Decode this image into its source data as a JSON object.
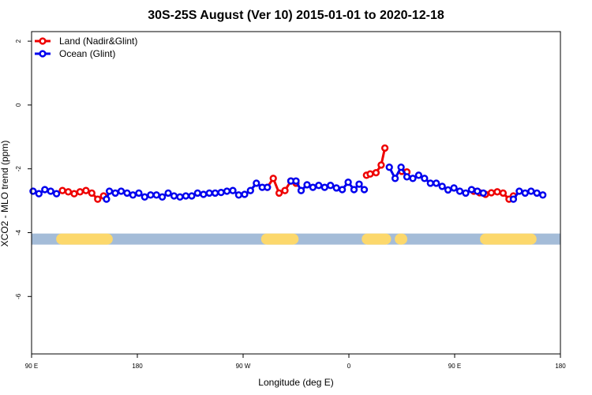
{
  "chart_data": {
    "type": "line",
    "title": "30S-25S August (Ver 10)   2015-01-01 to 2020-12-18",
    "xlabel": "Longitude (deg E)",
    "ylabel": "XCO2 - MLO trend (ppm)",
    "xlim": [
      90,
      450
    ],
    "ylim": [
      -7.8,
      2.3
    ],
    "x_ticks": [
      {
        "value": 90,
        "label": "90 E"
      },
      {
        "value": 162,
        "label": "180"
      },
      {
        "value": 234,
        "label": "90 W"
      },
      {
        "value": 306,
        "label": "0"
      },
      {
        "value": 378,
        "label": "90 E"
      },
      {
        "value": 450,
        "label": "180"
      }
    ],
    "y_ticks": [
      {
        "value": 2,
        "label": "2"
      },
      {
        "value": 0,
        "label": "0"
      },
      {
        "value": -2,
        "label": "-2"
      },
      {
        "value": -4,
        "label": "-4"
      },
      {
        "value": -6,
        "label": "-6"
      }
    ],
    "legend": {
      "position": "top-left"
    },
    "series": [
      {
        "name": "Land (Nadir&Glint)",
        "color": "#ee0000",
        "segments": [
          [
            [
              111,
              -2.68
            ],
            [
              115,
              -2.72
            ],
            [
              119,
              -2.78
            ],
            [
              123,
              -2.72
            ],
            [
              127,
              -2.68
            ],
            [
              131,
              -2.76
            ],
            [
              135,
              -2.95
            ],
            [
              139,
              -2.85
            ]
          ],
          [
            [
              250.5,
              -2.58
            ],
            [
              254.5,
              -2.3
            ],
            [
              258.5,
              -2.76
            ],
            [
              262.5,
              -2.68
            ],
            [
              266.5,
              -2.38
            ],
            [
              270,
              -2.45
            ]
          ],
          [
            [
              318,
              -2.2
            ],
            [
              320.5,
              -2.16
            ],
            [
              324.5,
              -2.12
            ],
            [
              328,
              -1.88
            ],
            [
              330.5,
              -1.35
            ]
          ],
          [
            [
              342,
              -2.08
            ],
            [
              345.5,
              -2.1
            ]
          ],
          [
            [
              391,
              -2.7
            ],
            [
              395,
              -2.75
            ],
            [
              399,
              -2.8
            ],
            [
              403,
              -2.75
            ],
            [
              407,
              -2.72
            ],
            [
              411,
              -2.76
            ],
            [
              415,
              -2.95
            ],
            [
              418,
              -2.85
            ]
          ]
        ]
      },
      {
        "name": "Ocean (Glint)",
        "color": "#0000ee",
        "segments": [
          [
            [
              91,
              -2.7
            ],
            [
              95,
              -2.78
            ],
            [
              99,
              -2.65
            ],
            [
              103,
              -2.7
            ],
            [
              107,
              -2.78
            ]
          ],
          [
            [
              141,
              -2.95
            ],
            [
              143,
              -2.7
            ],
            [
              147,
              -2.76
            ],
            [
              151,
              -2.7
            ],
            [
              155,
              -2.76
            ],
            [
              159,
              -2.82
            ],
            [
              163,
              -2.76
            ],
            [
              167,
              -2.88
            ],
            [
              171,
              -2.82
            ],
            [
              175,
              -2.82
            ],
            [
              179,
              -2.88
            ],
            [
              183,
              -2.76
            ],
            [
              187,
              -2.85
            ],
            [
              191,
              -2.88
            ],
            [
              195,
              -2.85
            ],
            [
              199,
              -2.85
            ],
            [
              203,
              -2.76
            ],
            [
              207,
              -2.8
            ],
            [
              211,
              -2.76
            ],
            [
              215,
              -2.76
            ],
            [
              219,
              -2.74
            ],
            [
              223,
              -2.7
            ],
            [
              227,
              -2.68
            ],
            [
              231,
              -2.82
            ],
            [
              235,
              -2.8
            ],
            [
              239,
              -2.68
            ],
            [
              243,
              -2.45
            ],
            [
              247,
              -2.58
            ],
            [
              250.5,
              -2.58
            ]
          ],
          [
            [
              266.5,
              -2.38
            ],
            [
              270,
              -2.38
            ],
            [
              273.5,
              -2.68
            ],
            [
              277.5,
              -2.5
            ],
            [
              281.5,
              -2.58
            ],
            [
              285.5,
              -2.52
            ],
            [
              289.5,
              -2.58
            ],
            [
              293.5,
              -2.52
            ],
            [
              297.5,
              -2.6
            ],
            [
              301.5,
              -2.65
            ],
            [
              305.5,
              -2.42
            ],
            [
              309.5,
              -2.65
            ],
            [
              313,
              -2.48
            ],
            [
              316.5,
              -2.65
            ]
          ],
          [
            [
              333.5,
              -1.95
            ],
            [
              337.5,
              -2.3
            ],
            [
              341.5,
              -1.95
            ],
            [
              345.5,
              -2.25
            ],
            [
              349.5,
              -2.3
            ],
            [
              353.5,
              -2.2
            ],
            [
              357.5,
              -2.3
            ],
            [
              361.5,
              -2.45
            ],
            [
              365.5,
              -2.45
            ],
            [
              369.5,
              -2.55
            ],
            [
              373.5,
              -2.66
            ],
            [
              377.5,
              -2.6
            ],
            [
              381.5,
              -2.7
            ],
            [
              385.5,
              -2.76
            ],
            [
              389.5,
              -2.65
            ],
            [
              393.5,
              -2.7
            ],
            [
              397.5,
              -2.76
            ]
          ],
          [
            [
              418,
              -2.95
            ],
            [
              422,
              -2.7
            ],
            [
              426,
              -2.76
            ],
            [
              430,
              -2.7
            ],
            [
              434,
              -2.76
            ],
            [
              438,
              -2.82
            ]
          ]
        ]
      }
    ],
    "land_ocean_strip": {
      "y": -4.2,
      "ocean_color": "#a4bcd8",
      "land_color": "#fcd86c",
      "land_ranges": [
        [
          110.5,
          141.5
        ],
        [
          250,
          268
        ],
        [
          318.5,
          331
        ],
        [
          341,
          342
        ],
        [
          399,
          430
        ]
      ]
    }
  }
}
